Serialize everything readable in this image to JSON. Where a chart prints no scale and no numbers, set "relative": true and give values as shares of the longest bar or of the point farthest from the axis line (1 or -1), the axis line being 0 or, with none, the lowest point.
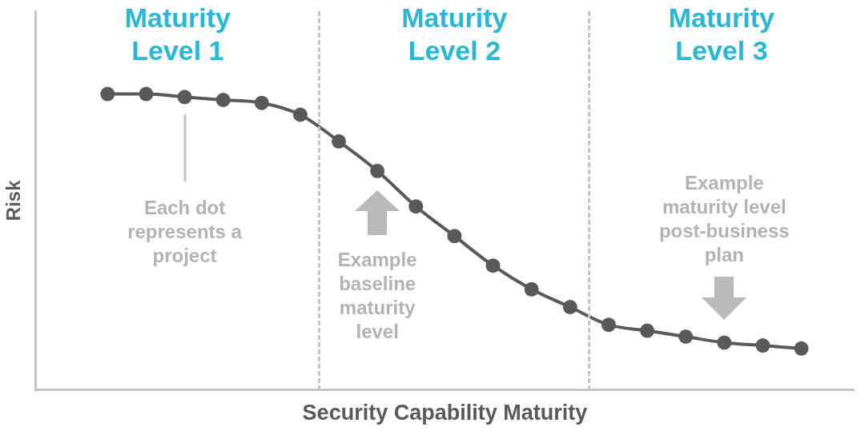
{
  "chart_data": {
    "type": "line",
    "relative": true,
    "xlabel": "Security Capability Maturity",
    "ylabel": "Risk",
    "tick_labels": false,
    "grid": false,
    "marker": "circle",
    "line_style": "solid",
    "categories": [
      null,
      null,
      null,
      null,
      null,
      null,
      null,
      null,
      null,
      null,
      null,
      null,
      null,
      null,
      null,
      null,
      null,
      null,
      null
    ],
    "series": [
      {
        "color": "#58595b",
        "values": [
          1,
          1,
          0.99,
          0.98,
          0.97,
          0.93,
          0.84,
          0.74,
          0.62,
          0.52,
          0.42,
          0.34,
          0.28,
          0.22,
          0.2,
          0.18,
          0.16,
          0.15,
          0.14
        ]
      }
    ],
    "annotations": [
      "Maturity Level 1",
      "Maturity Level 2",
      "Maturity Level 3",
      "Each dot represents a project",
      "Example baseline maturity level",
      "Example maturity level post-business plan"
    ]
  }
}
